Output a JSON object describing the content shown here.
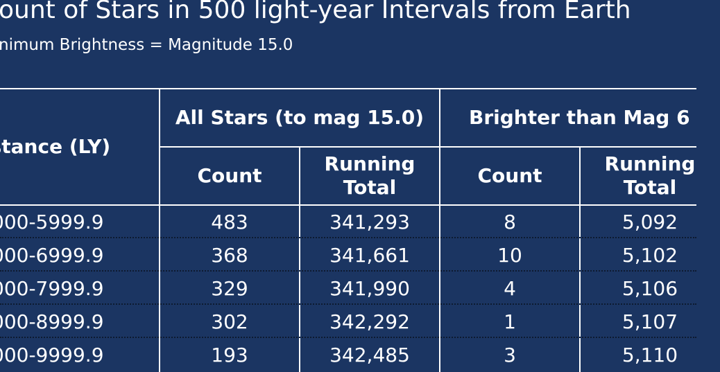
{
  "title": "ount of Stars in 500 light-year Intervals from Earth",
  "subtitle": "nimum Brightness = Magnitude 15.0",
  "table": {
    "header": {
      "distance": "istance (LY)",
      "group1": "All Stars (to mag 15.0)",
      "group2": "Brighter than Mag 6",
      "sub": [
        "Count",
        "Running\nTotal",
        "Count",
        "Running\nTotal"
      ]
    },
    "rows": [
      [
        "000-5999.9",
        "483",
        "341,293",
        "8",
        "5,092"
      ],
      [
        "000-6999.9",
        "368",
        "341,661",
        "10",
        "5,102"
      ],
      [
        "000-7999.9",
        "329",
        "341,990",
        "4",
        "5,106"
      ],
      [
        "000-8999.9",
        "302",
        "342,292",
        "1",
        "5,107"
      ],
      [
        "000-9999.9",
        "193",
        "342,485",
        "3",
        "5,110"
      ]
    ]
  }
}
